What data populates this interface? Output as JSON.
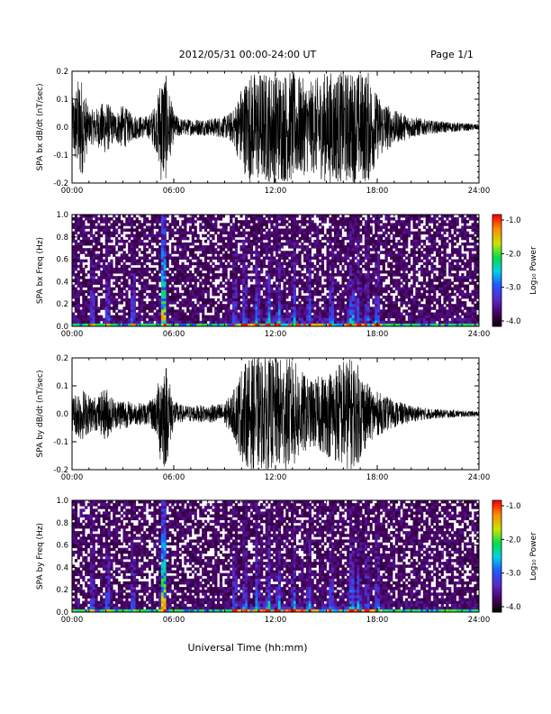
{
  "header": {
    "date_range": "2012/05/31   00:00-24:00 UT",
    "page": "Page 1/1"
  },
  "footer": {
    "xlabel": "Universal Time (hh:mm)"
  },
  "chart_data": [
    {
      "type": "line",
      "ylabel": "SPA bx dB/dt (nT/sec)",
      "ylim": [
        -0.2,
        0.2
      ],
      "yticks": [
        "0.2",
        "0.1",
        "0.0",
        "-0.1",
        "-0.2"
      ],
      "xlim": [
        0,
        24
      ],
      "xticks": [
        "00:00",
        "06:00",
        "12:00",
        "18:00",
        "24:00"
      ],
      "envelope_hours": [
        0,
        0.5,
        1,
        1.5,
        2,
        2.5,
        3,
        3.5,
        4,
        4.5,
        5,
        5.25,
        5.5,
        6,
        6.5,
        7,
        8,
        9,
        9.5,
        10,
        10.5,
        11,
        12,
        13,
        14,
        15,
        16,
        16.5,
        17,
        17.5,
        18,
        19,
        20,
        21,
        22,
        23,
        24
      ],
      "envelope_amplitude": [
        0.1,
        0.2,
        0.06,
        0.07,
        0.1,
        0.05,
        0.08,
        0.05,
        0.04,
        0.04,
        0.09,
        0.2,
        0.2,
        0.05,
        0.03,
        0.03,
        0.03,
        0.04,
        0.06,
        0.15,
        0.2,
        0.2,
        0.2,
        0.2,
        0.16,
        0.2,
        0.2,
        0.2,
        0.2,
        0.2,
        0.12,
        0.06,
        0.04,
        0.025,
        0.02,
        0.015,
        0.01
      ]
    },
    {
      "type": "heatmap",
      "ylabel": "SPA bx Freq (Hz)",
      "ylim": [
        0.0,
        1.0
      ],
      "yticks": [
        "1.0",
        "0.8",
        "0.6",
        "0.4",
        "0.2",
        "0.0"
      ],
      "xlim": [
        0,
        24
      ],
      "xticks": [
        "00:00",
        "06:00",
        "12:00",
        "18:00",
        "24:00"
      ],
      "colorbar": {
        "label": "Log₁₀ Power",
        "range": [
          -4.0,
          -1.0
        ],
        "ticks": [
          "-1.0",
          "-2.0",
          "-3.0",
          "-4.0"
        ]
      }
    },
    {
      "type": "line",
      "ylabel": "SPA by dB/dt (nT/sec)",
      "ylim": [
        -0.2,
        0.2
      ],
      "yticks": [
        "0.2",
        "0.1",
        "0.0",
        "-0.1",
        "-0.2"
      ],
      "xlim": [
        0,
        24
      ],
      "xticks": [
        "00:00",
        "06:00",
        "12:00",
        "18:00",
        "24:00"
      ],
      "envelope_hours": [
        0,
        0.5,
        1,
        1.5,
        2,
        2.5,
        3,
        3.5,
        4,
        4.5,
        5,
        5.25,
        5.5,
        6,
        6.5,
        7,
        8,
        9,
        9.5,
        10,
        10.5,
        11,
        12,
        13,
        14,
        15,
        16,
        16.5,
        17,
        17.5,
        18,
        19,
        20,
        21,
        22,
        23,
        24
      ],
      "envelope_amplitude": [
        0.06,
        0.1,
        0.07,
        0.06,
        0.1,
        0.05,
        0.06,
        0.04,
        0.04,
        0.04,
        0.08,
        0.2,
        0.2,
        0.05,
        0.03,
        0.03,
        0.03,
        0.04,
        0.08,
        0.17,
        0.2,
        0.2,
        0.2,
        0.2,
        0.12,
        0.15,
        0.2,
        0.2,
        0.17,
        0.1,
        0.08,
        0.05,
        0.03,
        0.02,
        0.015,
        0.012,
        0.01
      ]
    },
    {
      "type": "heatmap",
      "ylabel": "SPA by Freq (Hz)",
      "ylim": [
        0.0,
        1.0
      ],
      "yticks": [
        "1.0",
        "0.8",
        "0.6",
        "0.4",
        "0.2",
        "0.0"
      ],
      "xlim": [
        0,
        24
      ],
      "xticks": [
        "00:00",
        "06:00",
        "12:00",
        "18:00",
        "24:00"
      ],
      "colorbar": {
        "label": "Log₁₀ Power",
        "range": [
          -4.0,
          -1.0
        ],
        "ticks": [
          "-1.0",
          "-2.0",
          "-3.0",
          "-4.0"
        ]
      }
    }
  ]
}
